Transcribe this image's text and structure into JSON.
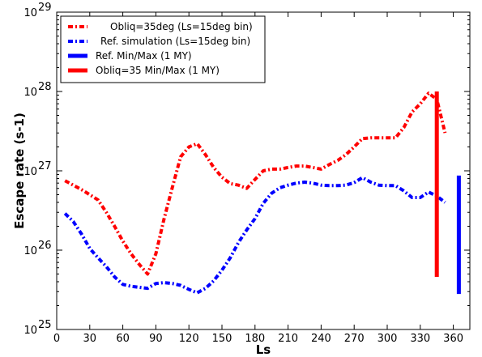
{
  "chart_data": {
    "type": "line",
    "xlabel": "Ls",
    "ylabel": "Escape rate (s-1)",
    "x_ticks": [
      "0",
      "30",
      "60",
      "90",
      "120",
      "150",
      "180",
      "210",
      "240",
      "270",
      "300",
      "330",
      "360"
    ],
    "y_ticks": [
      {
        "base": "10",
        "exp": "25"
      },
      {
        "base": "10",
        "exp": "26"
      },
      {
        "base": "10",
        "exp": "27"
      },
      {
        "base": "10",
        "exp": "28"
      },
      {
        "base": "10",
        "exp": "29"
      }
    ],
    "xlim": [
      0,
      375
    ],
    "ylim": [
      1e+25,
      1e+29
    ],
    "y_scale": "log",
    "grid": false,
    "legend_position": "top-left",
    "series": [
      {
        "name": "Obliq=35deg (Ls=15deg bin)",
        "color": "#ff0000",
        "style": "dash-dot",
        "x": [
          7.5,
          15,
          22.5,
          30,
          37.5,
          45,
          52.5,
          60,
          67.5,
          75,
          82.5,
          90,
          97.5,
          105,
          112.5,
          120,
          127.5,
          135,
          142.5,
          150,
          157.5,
          165,
          172.5,
          180,
          187.5,
          195,
          202.5,
          210,
          217.5,
          225,
          232.5,
          240,
          247.5,
          255,
          262.5,
          270,
          277.5,
          285,
          292.5,
          300,
          307.5,
          315,
          322.5,
          330,
          337.5,
          345,
          352.5
        ],
        "y": [
          7.5e+26,
          6.6e+26,
          5.8e+26,
          5e+26,
          4.3e+26,
          3e+26,
          2e+26,
          1.3e+26,
          9e+25,
          6.6e+25,
          5e+25,
          9e+25,
          2.5e+26,
          6.2e+26,
          1.5e+27,
          2e+27,
          2.2e+27,
          1.6e+27,
          1.1e+27,
          8.3e+26,
          6.9e+26,
          6.6e+26,
          6e+26,
          7.8e+26,
          1e+27,
          1.05e+27,
          1.05e+27,
          1.1e+27,
          1.15e+27,
          1.15e+27,
          1.1e+27,
          1.05e+27,
          1.2e+27,
          1.35e+27,
          1.6e+27,
          2e+27,
          2.55e+27,
          2.6e+27,
          2.6e+27,
          2.6e+27,
          2.6e+27,
          3.5e+27,
          5.5e+27,
          7e+27,
          9.5e+27,
          8e+27,
          3e+27
        ]
      },
      {
        "name": "Ref. simulation (Ls=15deg bin)",
        "color": "#0000ff",
        "style": "dash-dot",
        "x": [
          7.5,
          15,
          22.5,
          30,
          37.5,
          45,
          52.5,
          60,
          67.5,
          75,
          82.5,
          90,
          97.5,
          105,
          112.5,
          120,
          127.5,
          135,
          142.5,
          150,
          157.5,
          165,
          172.5,
          180,
          187.5,
          195,
          202.5,
          210,
          217.5,
          225,
          232.5,
          240,
          247.5,
          255,
          262.5,
          270,
          277.5,
          285,
          292.5,
          300,
          307.5,
          315,
          322.5,
          330,
          337.5,
          345,
          352.5
        ],
        "y": [
          2.9e+26,
          2.3e+26,
          1.6e+26,
          1.05e+26,
          8e+25,
          6.2e+25,
          4.6e+25,
          3.7e+25,
          3.5e+25,
          3.4e+25,
          3.3e+25,
          3.8e+25,
          3.9e+25,
          3.8e+25,
          3.6e+25,
          3.2e+25,
          2.9e+25,
          3.3e+25,
          4.1e+25,
          5.6e+25,
          8e+25,
          1.25e+26,
          1.8e+26,
          2.5e+26,
          3.9e+26,
          5.2e+26,
          6.1e+26,
          6.6e+26,
          7e+26,
          7.2e+26,
          7e+26,
          6.6e+26,
          6.5e+26,
          6.5e+26,
          6.6e+26,
          7.1e+26,
          8.2e+26,
          7.2e+26,
          6.6e+26,
          6.5e+26,
          6.5e+26,
          5.6e+26,
          4.6e+26,
          4.6e+26,
          5.4e+26,
          4.8e+26,
          4e+26
        ]
      }
    ],
    "ranges": [
      {
        "name": "Ref. Min/Max (1 MY)",
        "color": "#0000ff",
        "x": 365,
        "min": 2.8e+25,
        "max": 8.7e+26
      },
      {
        "name": "Obliq=35 Min/Max (1 MY)",
        "color": "#ff0000",
        "x": 345,
        "min": 4.6e+25,
        "max": 1e+28
      }
    ]
  }
}
